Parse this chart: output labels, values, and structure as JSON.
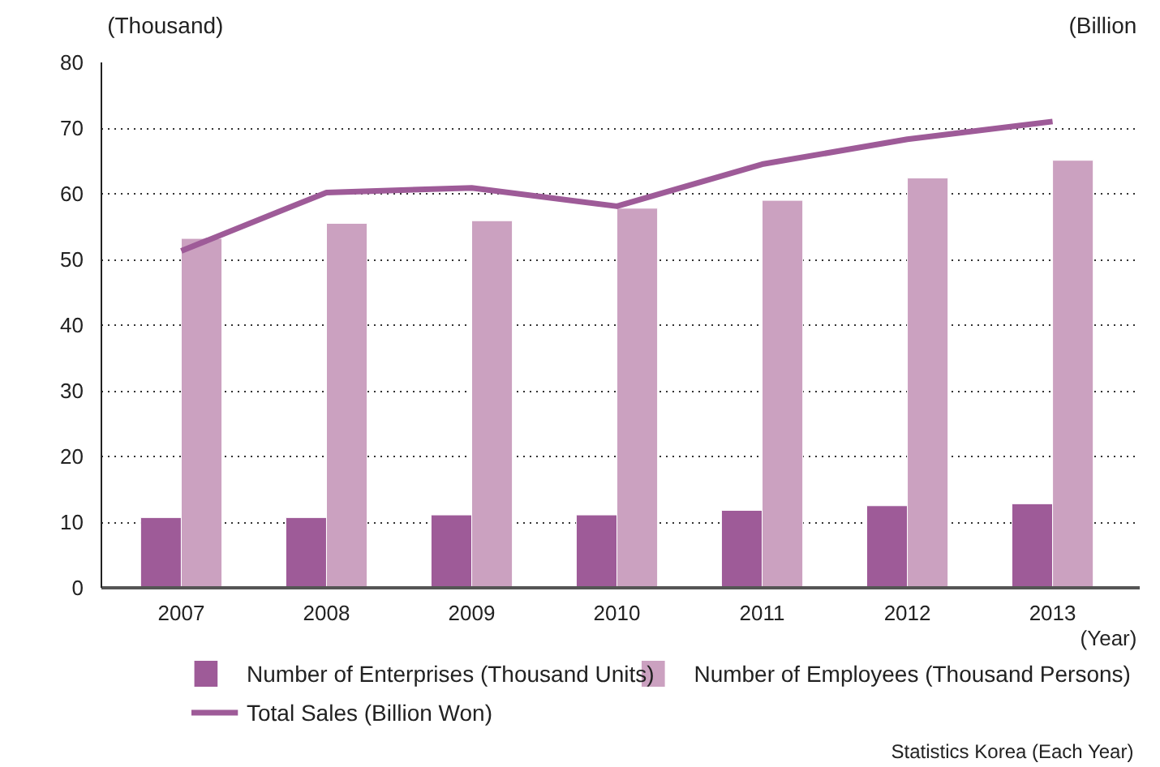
{
  "chart_data": {
    "type": "bar",
    "categories": [
      "2007",
      "2008",
      "2009",
      "2010",
      "2011",
      "2012",
      "2013"
    ],
    "xlabel": "(Year)",
    "ylabel": "(Thousand)",
    "y2label": "(Billion",
    "series": [
      {
        "name": "Number of Enterprises (Thousand Units)",
        "color": "#9e5b98",
        "values": [
          10.7,
          10.7,
          11.1,
          11.1,
          11.8,
          12.5,
          12.8
        ]
      },
      {
        "name": "Number of Employees (Thousand Persons)",
        "color": "#cba1c0",
        "values": [
          53.2,
          55.5,
          55.9,
          57.8,
          59.0,
          62.4,
          65.1
        ]
      },
      {
        "name": "Total Sales (Billion Won)",
        "type": "line",
        "color": "#9e5b98",
        "values": [
          51.3,
          60.2,
          60.9,
          58.1,
          64.5,
          68.3,
          71.0
        ]
      }
    ],
    "ylim": [
      0,
      80
    ],
    "yticks": [
      0,
      10,
      20,
      30,
      40,
      50,
      60,
      70,
      80
    ],
    "grid": "y",
    "legend": "bottom",
    "line_style": "solid",
    "annotations": [
      "Statistics Korea (Each Year)"
    ]
  }
}
